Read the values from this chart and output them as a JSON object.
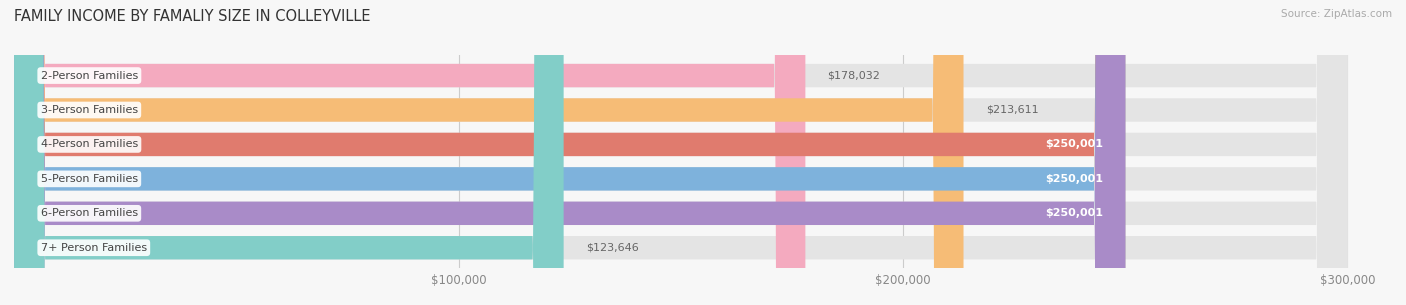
{
  "title": "FAMILY INCOME BY FAMALIY SIZE IN COLLEYVILLE",
  "source": "Source: ZipAtlas.com",
  "categories": [
    "2-Person Families",
    "3-Person Families",
    "4-Person Families",
    "5-Person Families",
    "6-Person Families",
    "7+ Person Families"
  ],
  "values": [
    178032,
    213611,
    250001,
    250001,
    250001,
    123646
  ],
  "bar_colors": [
    "#F4AABF",
    "#F6BC76",
    "#E07B6E",
    "#7EB2DC",
    "#A98BC8",
    "#82CEC8"
  ],
  "bar_labels": [
    "$178,032",
    "$213,611",
    "$250,001",
    "$250,001",
    "$250,001",
    "$123,646"
  ],
  "label_inside": [
    false,
    false,
    true,
    true,
    true,
    false
  ],
  "label_color_outside": "#666666",
  "label_color_inside": "#ffffff",
  "xlim": [
    0,
    310000
  ],
  "data_max": 300000,
  "xticks": [
    100000,
    200000,
    300000
  ],
  "xticklabels": [
    "$100,000",
    "$200,000",
    "$300,000"
  ],
  "background_color": "#f7f7f7",
  "bar_bg_color": "#e4e4e4",
  "title_fontsize": 10.5,
  "source_fontsize": 7.5,
  "tick_fontsize": 8.5,
  "bar_label_fontsize": 8,
  "category_fontsize": 8
}
